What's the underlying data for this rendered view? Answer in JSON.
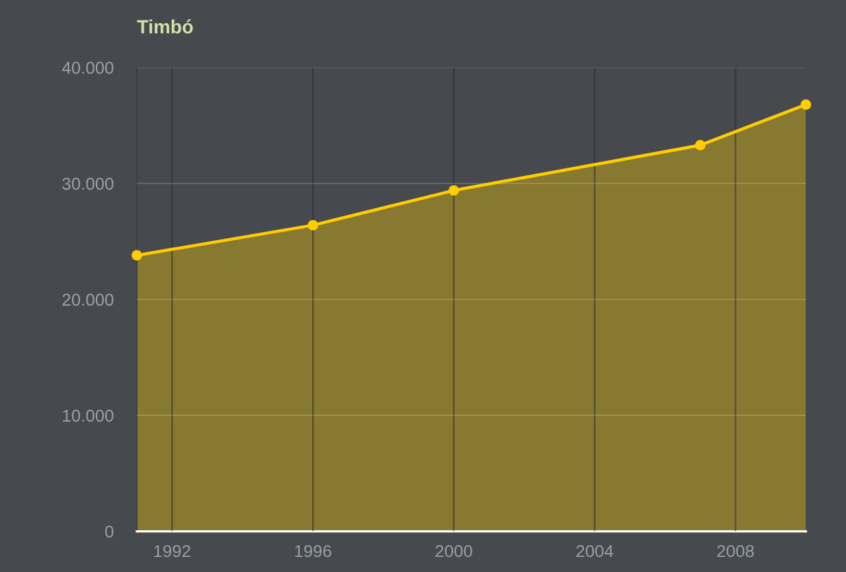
{
  "chart_data": {
    "type": "area",
    "title": "Timbó",
    "x": [
      1991,
      1996,
      2000,
      2007,
      2010
    ],
    "series": [
      {
        "color": "#ffcc00",
        "values": [
          23800,
          26400,
          29400,
          33300,
          36800
        ]
      }
    ],
    "xlim": [
      1991,
      2010
    ],
    "xticks": [
      1992,
      1996,
      2000,
      2004,
      2008
    ],
    "ylim": [
      0,
      40000
    ],
    "yticks": [
      0,
      {
        "value": 10000,
        "label": "10.000"
      },
      {
        "value": 20000,
        "label": "20.000"
      },
      {
        "value": 30000,
        "label": "30.000"
      },
      {
        "value": 40000,
        "label": "40.000"
      }
    ],
    "grid": true,
    "legend": false,
    "marker": "circle",
    "line_style": "solid"
  }
}
